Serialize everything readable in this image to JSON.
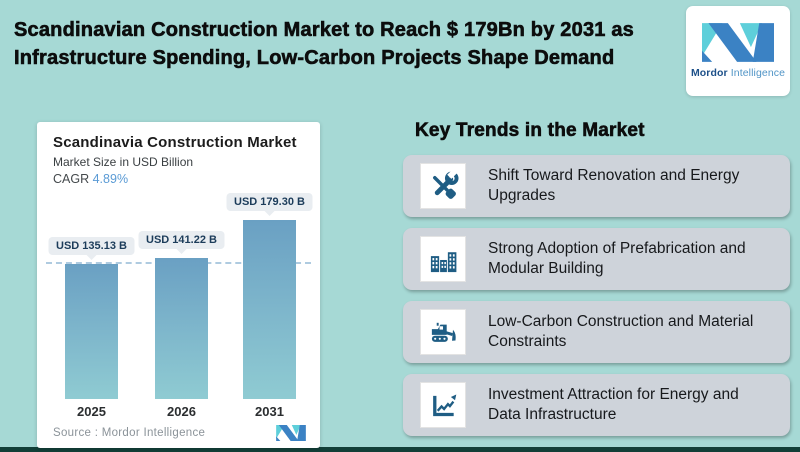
{
  "header": {
    "title_line1": "Scandinavian Construction Market to Reach $ 179Bn by 2031 as",
    "title_line2": "Infrastructure Spending, Low-Carbon Projects Shape Demand",
    "logo": {
      "brand_bold": "Mordor",
      "brand_light": "Intelligence"
    }
  },
  "chart_card": {
    "title": "Scandinavia Construction Market",
    "subtitle": "Market Size in USD Billion",
    "cagr_label": "CAGR",
    "cagr_value": "4.89%",
    "source_label": "Source :  Mordor Intelligence"
  },
  "chart_data": {
    "type": "bar",
    "title": "Scandinavia Construction Market",
    "ylabel": "Market Size in USD Billion",
    "unit": "USD Billion",
    "categories": [
      "2025",
      "2026",
      "2031"
    ],
    "values": [
      135.13,
      141.22,
      179.3
    ],
    "value_labels": [
      "USD 135.13 B",
      "USD 141.22 B",
      "USD 179.30 B"
    ],
    "cagr_percent": 4.89,
    "reference_line_value": 135.13,
    "grid": false,
    "legend": false
  },
  "trends": {
    "heading": "Key Trends in the Market",
    "items": [
      {
        "icon": "tools-icon",
        "text": "Shift Toward Renovation and Energy Upgrades"
      },
      {
        "icon": "buildings-icon",
        "text": "Strong Adoption of Prefabrication and Modular Building"
      },
      {
        "icon": "bulldozer-icon",
        "text": "Low-Carbon Construction and Material Constraints"
      },
      {
        "icon": "chart-growth-icon",
        "text": "Investment Attraction for Energy and Data Infrastructure"
      }
    ]
  },
  "colors": {
    "background": "#a6d9d5",
    "brand_blue": "#3b82c4",
    "brand_teal": "#5ecfda",
    "icon_blue": "#1f5d84",
    "cagr_blue": "#5b9bd5",
    "bar_top": "#6aa0c3",
    "bar_bottom": "#8fcbd2",
    "trend_card_gray": "#ced3da",
    "bottom_strip": "#123f38"
  }
}
